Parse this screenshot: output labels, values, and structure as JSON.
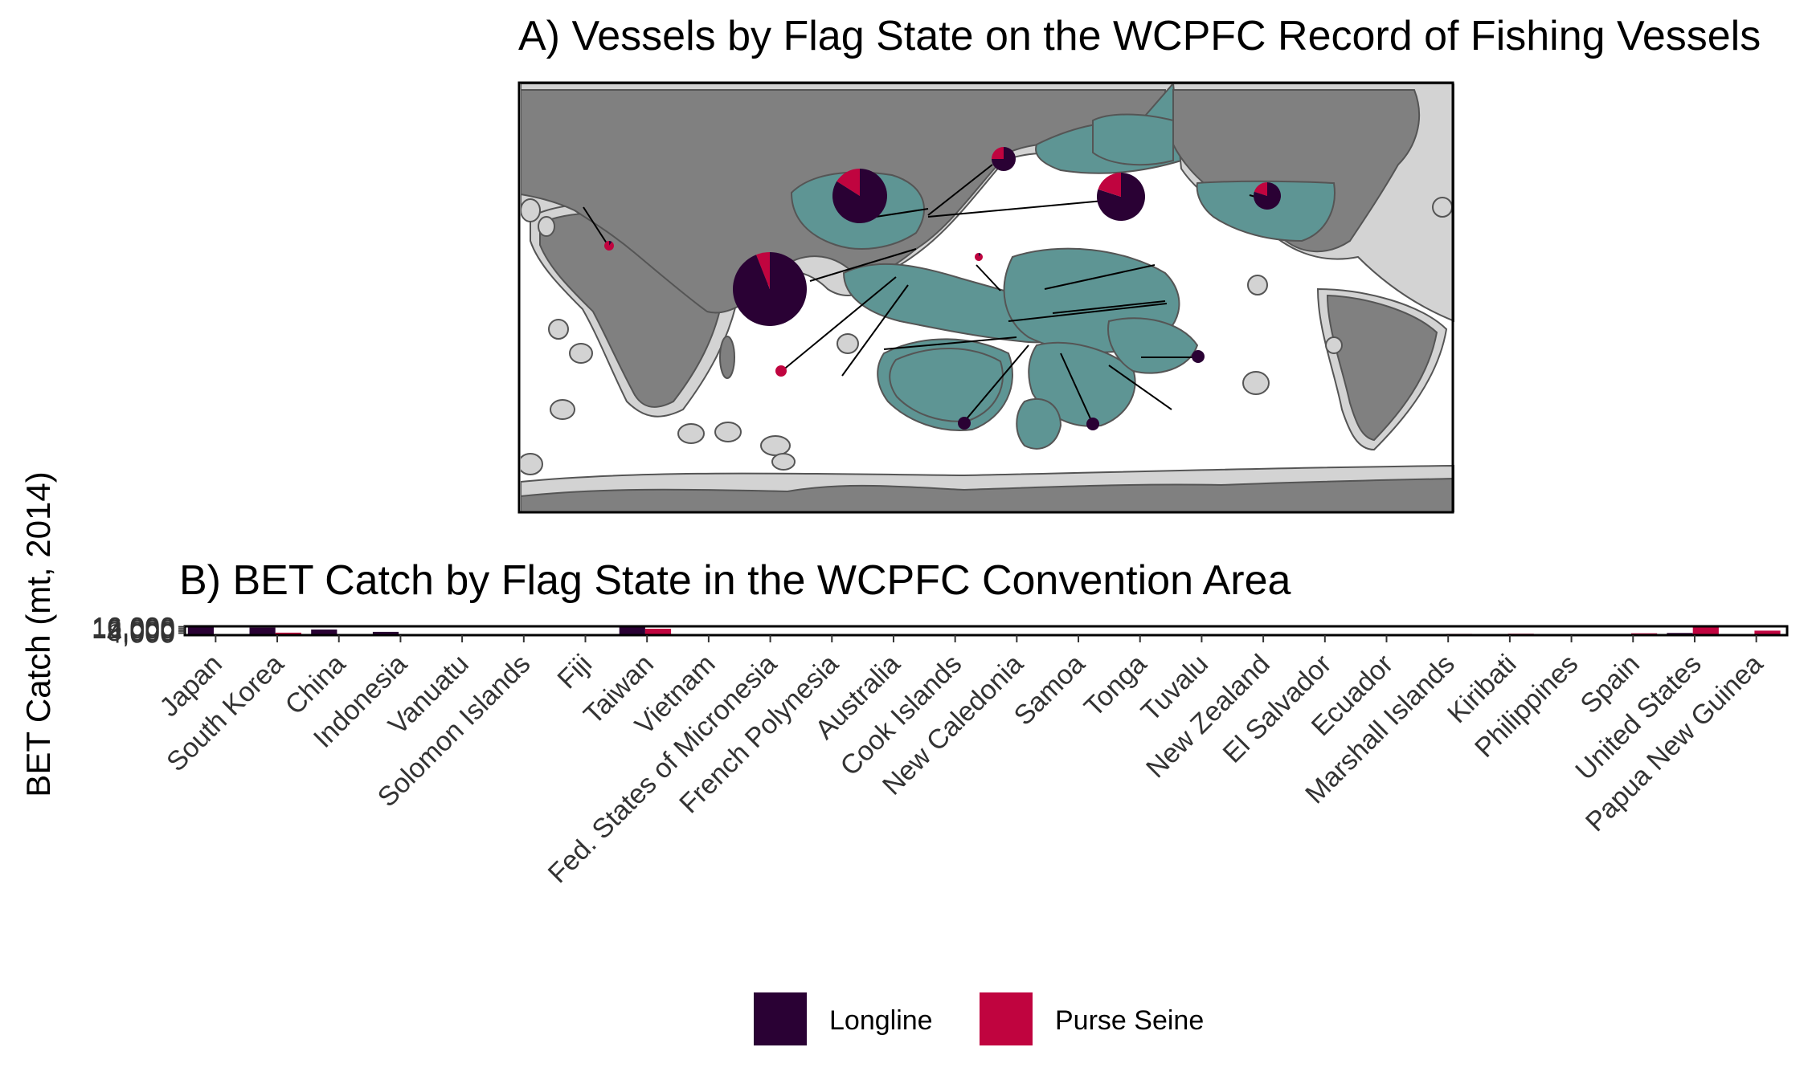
{
  "chart_data": [
    {
      "type": "map",
      "title": "A) Vessels by Flag State on the WCPFC Record of Fishing Vessels",
      "colors": {
        "ocean": "#ffffff",
        "land": "#808080",
        "eez": "#d3d3d3",
        "wcpfc_eez": "#5e9594"
      },
      "pies": [
        {
          "name": "pie-taiwan",
          "longline": 0.94,
          "purse_seine": 0.06,
          "size": "largest"
        },
        {
          "name": "pie-china",
          "longline": 0.84,
          "purse_seine": 0.16,
          "size": "large"
        },
        {
          "name": "pie-japan",
          "longline": 0.8,
          "purse_seine": 0.2,
          "size": "large"
        },
        {
          "name": "pie-south-korea",
          "longline": 0.75,
          "purse_seine": 0.25,
          "size": "small"
        },
        {
          "name": "pie-united-states",
          "longline": 0.8,
          "purse_seine": 0.2,
          "size": "small"
        },
        {
          "name": "pie-spain",
          "longline": 0.1,
          "purse_seine": 0.9,
          "size": "tiny"
        },
        {
          "name": "pie-philippines",
          "longline": 0.1,
          "purse_seine": 0.9,
          "size": "tiny"
        },
        {
          "name": "pie-el-salvador",
          "longline": 0.0,
          "purse_seine": 1.0,
          "size": "tiny"
        },
        {
          "name": "pie-cook-islands",
          "longline": 1.0,
          "purse_seine": 0.0,
          "size": "tiny"
        },
        {
          "name": "pie-new-zealand",
          "longline": 1.0,
          "purse_seine": 0.0,
          "size": "tiny"
        },
        {
          "name": "pie-australia",
          "longline": 1.0,
          "purse_seine": 0.0,
          "size": "tiny"
        }
      ]
    },
    {
      "type": "bar",
      "title": "B) BET Catch by Flag State in the WCPFC Convention Area",
      "ylabel": "BET Catch (mt, 2014)",
      "ytick_labels": [
        "4,000",
        "8,000",
        "12,000",
        "16,000"
      ],
      "ylim": [
        0,
        17000
      ],
      "categories": [
        "Japan",
        "South Korea",
        "China",
        "Indonesia",
        "Vanuatu",
        "Solomon Islands",
        "Fiji",
        "Taiwan",
        "Vietnam",
        "Fed. States of Micronesia",
        "French Polynesia",
        "Australia",
        "Cook Islands",
        "New Caledonia",
        "Samoa",
        "Tonga",
        "Tuvalu",
        "New Zealand",
        "El Salvador",
        "Ecuador",
        "Marshall Islands",
        "Kiribati",
        "Philippines",
        "Spain",
        "United States",
        "Papua New Guinea"
      ],
      "series": [
        {
          "name": "Longline",
          "color": "#2a0134",
          "values": [
            16500,
            14500,
            10800,
            6400,
            1500,
            800,
            900,
            15800,
            300,
            600,
            700,
            400,
            350,
            300,
            250,
            200,
            150,
            300,
            0,
            0,
            600,
            400,
            0,
            0,
            4200,
            0
          ]
        },
        {
          "name": "Purse Seine",
          "color": "#c0043f",
          "values": [
            1200,
            4800,
            500,
            400,
            400,
            500,
            300,
            12300,
            200,
            300,
            0,
            0,
            0,
            0,
            0,
            0,
            0,
            0,
            0,
            0,
            2500,
            2800,
            2300,
            3600,
            16800,
            8700
          ]
        }
      ],
      "legend": {
        "position": "bottom",
        "items": [
          "Longline",
          "Purse Seine"
        ]
      }
    }
  ]
}
